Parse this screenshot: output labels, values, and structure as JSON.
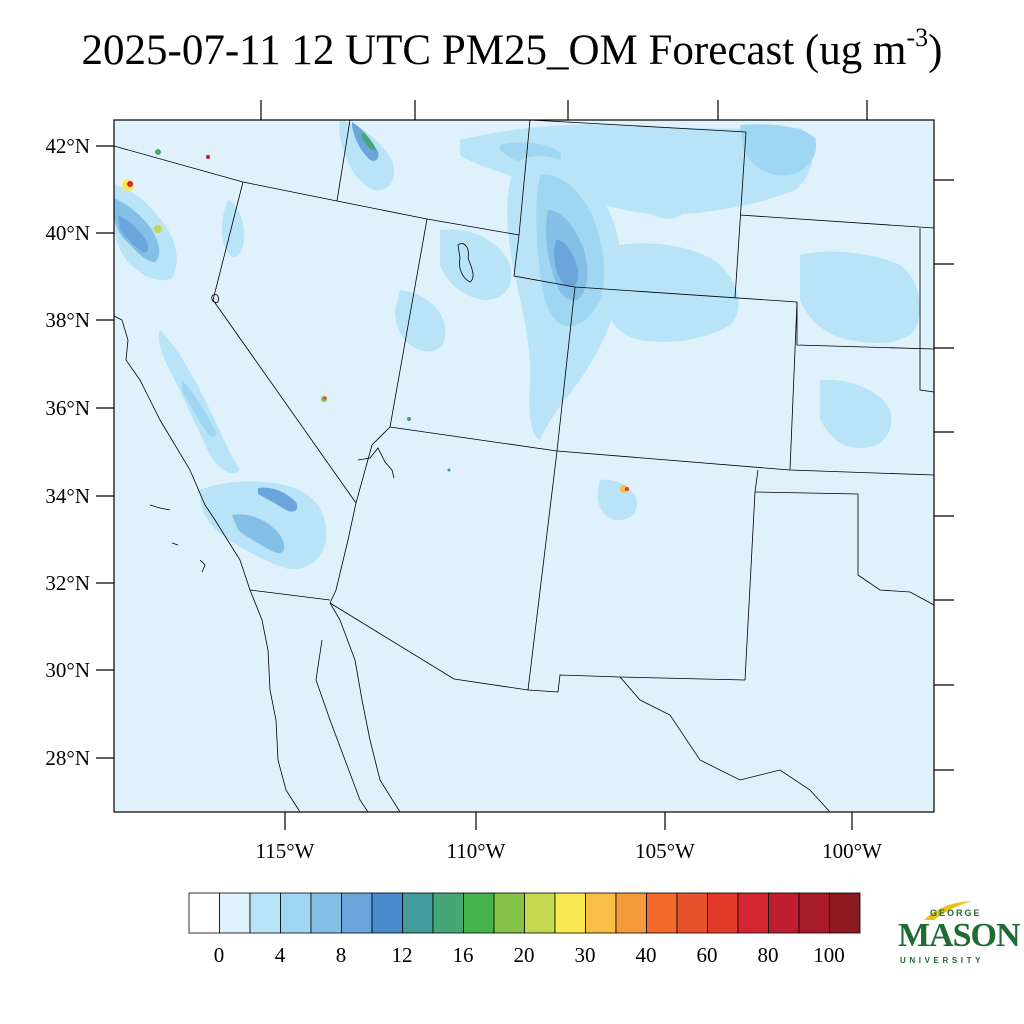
{
  "title": {
    "text": "2025-07-11 12 UTC PM25_OM Forecast (ug m",
    "superscript": "-3",
    "close": ")"
  },
  "map": {
    "background_color": "#dff1fb",
    "lat_labels": [
      "42°N",
      "40°N",
      "38°N",
      "36°N",
      "34°N",
      "32°N",
      "30°N",
      "28°N"
    ],
    "lon_labels": [
      "115°W",
      "110°W",
      "105°W",
      "100°W"
    ]
  },
  "colorbar": {
    "colors": [
      "#ffffff",
      "#dff1fb",
      "#b9e3f6",
      "#9fd6f2",
      "#84c0e6",
      "#6aa6dc",
      "#4a8ccb",
      "#449b9c",
      "#47a675",
      "#45b44b",
      "#86c24a",
      "#c4d850",
      "#f9e852",
      "#f8be48",
      "#f59a3a",
      "#f26a2c",
      "#e9512c",
      "#e13a2b",
      "#d42532",
      "#be1e2d",
      "#a81c2a",
      "#8c1a1e"
    ],
    "labels": [
      "0",
      "4",
      "8",
      "12",
      "16",
      "20",
      "30",
      "40",
      "60",
      "80",
      "100"
    ]
  },
  "logo": {
    "top": "GEORGE",
    "main": "MASON",
    "bottom": "UNIVERSITY",
    "color": "#1f6b34",
    "accent": "#e8c21a"
  }
}
